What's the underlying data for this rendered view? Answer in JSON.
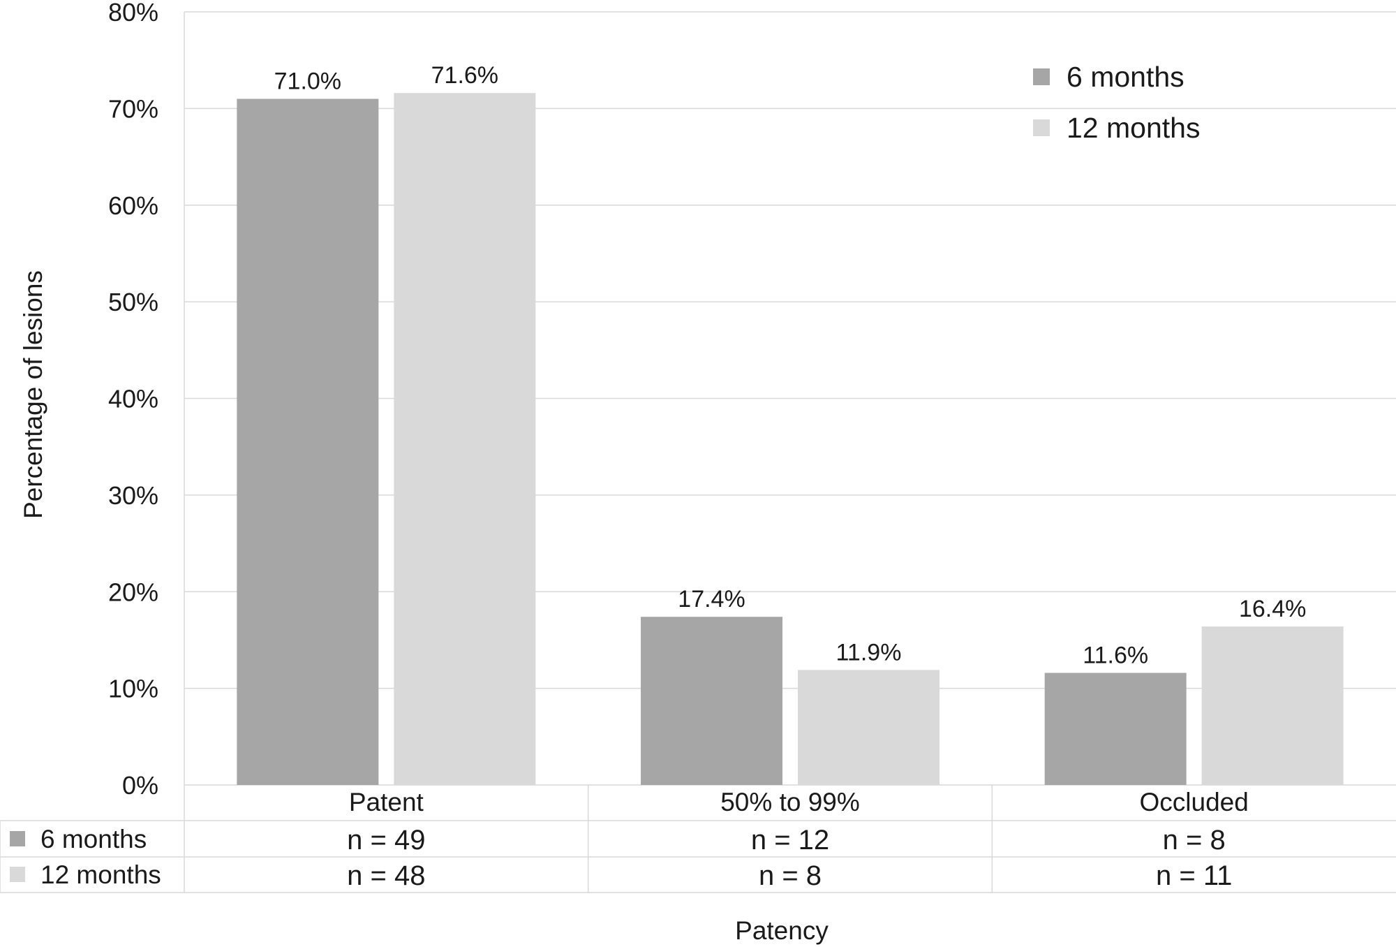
{
  "chart_data": {
    "type": "bar",
    "categories": [
      "Patent",
      "50% to 99%",
      "Occluded"
    ],
    "series": [
      {
        "name": "6 months",
        "values": [
          71.0,
          17.4,
          11.6
        ],
        "value_labels": [
          "71.0%",
          "17.4%",
          "11.6%"
        ],
        "counts": [
          "n = 49",
          "n = 12",
          "n = 8"
        ],
        "color": "#a6a6a6"
      },
      {
        "name": "12 months",
        "values": [
          71.6,
          11.9,
          16.4
        ],
        "value_labels": [
          "71.6%",
          "11.9%",
          "16.4%"
        ],
        "counts": [
          "n = 48",
          "n = 8",
          "n = 11"
        ],
        "color": "#d9d9d9"
      }
    ],
    "xlabel": "Patency",
    "ylabel": "Percentage of lesions",
    "ylim": [
      0,
      80
    ],
    "yticks": [
      "0%",
      "10%",
      "20%",
      "30%",
      "40%",
      "50%",
      "60%",
      "70%",
      "80%"
    ],
    "grid": true,
    "legend_position": "top-right",
    "data_table": true
  }
}
